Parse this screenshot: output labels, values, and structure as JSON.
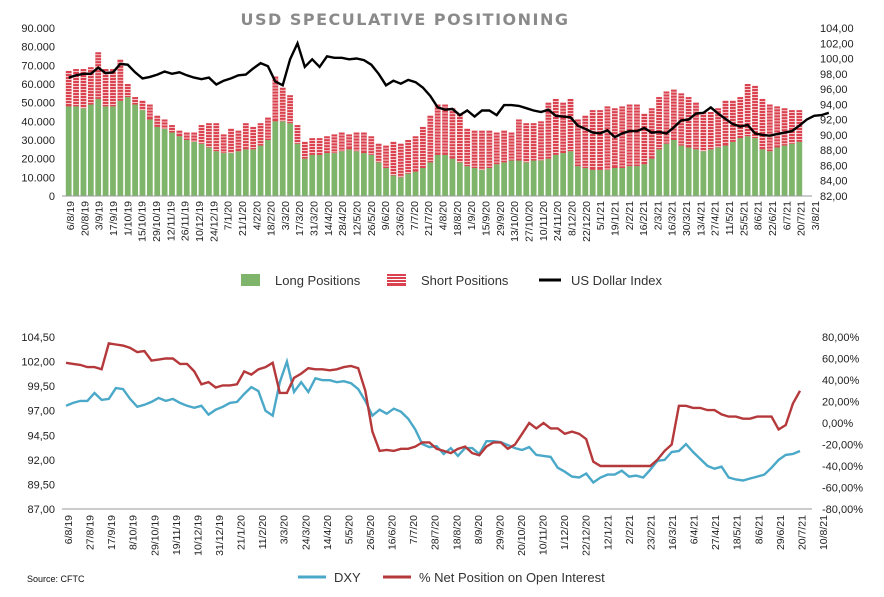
{
  "chart_data": [
    {
      "type": "bar",
      "title": "USD SPECULATIVE POSITIONING",
      "stacked": true,
      "y_left": {
        "ticks": [
          "0",
          "10.000",
          "20.000",
          "30.000",
          "40.000",
          "50.000",
          "60.000",
          "70.000",
          "80.000",
          "90.000"
        ],
        "range": [
          0,
          90000
        ]
      },
      "y_right": {
        "ticks": [
          "82,00",
          "84,00",
          "86,00",
          "88,00",
          "90,00",
          "92,00",
          "94,00",
          "96,00",
          "98,00",
          "100,00",
          "102,00",
          "104,00"
        ],
        "range": [
          82,
          104
        ]
      },
      "x_tick_labels": [
        "6/8/19",
        "20/8/19",
        "3/9/19",
        "17/9/19",
        "1/10/19",
        "15/10/19",
        "29/10/19",
        "12/11/19",
        "26/11/19",
        "10/12/19",
        "24/12/19",
        "7/1/20",
        "21/1/20",
        "4/2/20",
        "18/2/20",
        "3/3/20",
        "17/3/20",
        "31/3/20",
        "14/4/20",
        "28/4/20",
        "12/5/20",
        "26/5/20",
        "9/6/20",
        "23/6/20",
        "7/7/20",
        "21/7/20",
        "4/8/20",
        "18/8/20",
        "1/9/20",
        "15/9/20",
        "29/9/20",
        "13/10/20",
        "27/10/20",
        "10/11/20",
        "24/11/20",
        "8/12/20",
        "22/12/20",
        "5/1/21",
        "19/1/21",
        "2/2/21",
        "16/2/21",
        "2/3/21",
        "16/3/21",
        "30/3/21",
        "13/4/21",
        "27/4/21",
        "11/5/21",
        "25/5/21",
        "8/6/21",
        "22/6/21",
        "6/7/21",
        "20/7/21",
        "3/8/21"
      ],
      "legend_position": "bottom",
      "series": [
        {
          "name": "Long Positions",
          "color": "#7fb56a",
          "values": [
            48000,
            48000,
            47000,
            49000,
            52000,
            48000,
            48000,
            51000,
            53000,
            49000,
            46000,
            41000,
            37000,
            36000,
            34000,
            32000,
            30000,
            29000,
            28000,
            26000,
            24000,
            23000,
            23000,
            24000,
            25000,
            25000,
            27000,
            30000,
            40000,
            40000,
            39000,
            28000,
            20000,
            22000,
            22000,
            23000,
            23000,
            24000,
            25000,
            24000,
            23000,
            22000,
            18000,
            15000,
            11000,
            10000,
            12000,
            13000,
            15000,
            18000,
            22000,
            22000,
            20000,
            18000,
            16000,
            15000,
            14000,
            15000,
            17000,
            18000,
            19000,
            19000,
            18000,
            19000,
            19000,
            20000,
            22000,
            23000,
            24000,
            16000,
            15000,
            14000,
            14000,
            14000,
            15000,
            15000,
            16000,
            16000,
            17000,
            20000,
            25000,
            28000,
            30000,
            27000,
            26000,
            25000,
            24000,
            25000,
            26000,
            27000,
            29000,
            31000,
            32000,
            31000,
            25000,
            24000,
            26000,
            27000,
            28000,
            29000
          ]
        },
        {
          "name": "Short Positions",
          "color": "#d9424e",
          "values": [
            19000,
            20000,
            21000,
            20000,
            25000,
            20000,
            20000,
            22000,
            7000,
            4000,
            5000,
            8000,
            6000,
            5000,
            4000,
            3000,
            4000,
            5000,
            10000,
            13000,
            15000,
            10000,
            13000,
            11000,
            14000,
            12000,
            12000,
            12000,
            24000,
            18000,
            15000,
            10000,
            9000,
            9000,
            9000,
            9000,
            10000,
            10000,
            8000,
            10000,
            11000,
            10000,
            10000,
            12000,
            18000,
            18000,
            18000,
            19000,
            22000,
            25000,
            27000,
            27000,
            27000,
            26000,
            20000,
            20000,
            21000,
            20000,
            17000,
            17000,
            15000,
            22000,
            21000,
            20000,
            21000,
            30000,
            30000,
            27000,
            28000,
            25000,
            28000,
            32000,
            32000,
            34000,
            32000,
            33000,
            33000,
            33000,
            27000,
            27000,
            28000,
            28000,
            27000,
            28000,
            27000,
            25000,
            21000,
            20000,
            21000,
            24000,
            22000,
            22000,
            28000,
            28000,
            27000,
            25000,
            22000,
            20000,
            18000,
            17000
          ]
        },
        {
          "name": "US Dollar Index",
          "color": "#000000",
          "axis": "right",
          "values": [
            97.5,
            97.8,
            98.0,
            98.0,
            98.8,
            98.1,
            98.2,
            99.3,
            99.2,
            98.2,
            97.4,
            97.6,
            97.9,
            98.3,
            98.0,
            98.2,
            97.8,
            97.5,
            97.3,
            97.5,
            96.6,
            97.1,
            97.4,
            97.8,
            97.9,
            98.7,
            99.4,
            99.0,
            97.0,
            96.5,
            99.9,
            102.0,
            98.9,
            99.9,
            98.9,
            100.3,
            100.1,
            100.1,
            99.9,
            100.0,
            99.8,
            99.2,
            98.0,
            96.5,
            97.1,
            96.7,
            97.2,
            96.9,
            96.2,
            95.1,
            93.6,
            93.3,
            93.4,
            92.6,
            93.2,
            92.4,
            93.2,
            93.2,
            92.6,
            93.9,
            93.9,
            93.8,
            93.5,
            93.2,
            93.0,
            93.3,
            92.5,
            92.4,
            92.3,
            91.2,
            90.8,
            90.3,
            90.2,
            90.6,
            89.7,
            90.2,
            90.5,
            90.5,
            90.9,
            90.3,
            90.4,
            90.2,
            91.0,
            91.9,
            92.0,
            92.8,
            92.9,
            93.6,
            92.8,
            92.1,
            91.4,
            91.1,
            91.3,
            90.2,
            90.0,
            89.9,
            90.1,
            90.3,
            90.5,
            91.2,
            92.0,
            92.5,
            92.6,
            92.9
          ]
        }
      ]
    },
    {
      "type": "line",
      "source": "Source: CFTC",
      "y_left": {
        "ticks": [
          "87,00",
          "89,50",
          "92,00",
          "94,50",
          "97,00",
          "99,50",
          "102,00",
          "104,50"
        ],
        "range": [
          87,
          104.5
        ]
      },
      "y_right": {
        "ticks": [
          "-80,00%",
          "-60,00%",
          "-40,00%",
          "-20,00%",
          "0,00%",
          "20,00%",
          "40,00%",
          "60,00%",
          "80,00%"
        ],
        "range": [
          -80,
          80
        ]
      },
      "x_tick_labels": [
        "6/8/19",
        "27/8/19",
        "17/9/19",
        "8/10/19",
        "29/10/19",
        "19/11/19",
        "10/12/19",
        "31/12/19",
        "21/1/20",
        "11/2/20",
        "3/3/20",
        "24/3/20",
        "14/4/20",
        "5/5/20",
        "26/5/20",
        "16/6/20",
        "7/7/20",
        "28/7/20",
        "18/8/20",
        "8/9/20",
        "29/9/20",
        "20/10/20",
        "10/11/20",
        "1/12/20",
        "22/12/20",
        "12/1/21",
        "2/2/21",
        "23/2/21",
        "16/3/21",
        "6/4/21",
        "27/4/21",
        "18/5/21",
        "8/6/21",
        "29/6/21",
        "20/7/21",
        "10/8/21"
      ],
      "legend_position": "bottom",
      "series": [
        {
          "name": "DXY",
          "color": "#4aa8c8",
          "values": [
            97.5,
            97.8,
            98.0,
            98.0,
            98.8,
            98.1,
            98.2,
            99.3,
            99.2,
            98.2,
            97.4,
            97.6,
            97.9,
            98.3,
            98.0,
            98.2,
            97.8,
            97.5,
            97.3,
            97.5,
            96.6,
            97.1,
            97.4,
            97.8,
            97.9,
            98.7,
            99.4,
            99.0,
            97.0,
            96.5,
            99.9,
            102.0,
            98.9,
            99.9,
            98.9,
            100.3,
            100.1,
            100.1,
            99.9,
            100.0,
            99.8,
            99.2,
            98.0,
            96.5,
            97.1,
            96.7,
            97.2,
            96.9,
            96.2,
            95.1,
            93.6,
            93.3,
            93.4,
            92.6,
            93.2,
            92.4,
            93.2,
            93.2,
            92.6,
            93.9,
            93.9,
            93.8,
            93.5,
            93.2,
            93.0,
            93.3,
            92.5,
            92.4,
            92.3,
            91.2,
            90.8,
            90.3,
            90.2,
            90.6,
            89.7,
            90.2,
            90.5,
            90.5,
            90.9,
            90.3,
            90.4,
            90.2,
            91.0,
            91.9,
            92.0,
            92.8,
            92.9,
            93.6,
            92.8,
            92.1,
            91.4,
            91.1,
            91.3,
            90.2,
            90.0,
            89.9,
            90.1,
            90.3,
            90.5,
            91.2,
            92.0,
            92.5,
            92.6,
            92.9
          ]
        },
        {
          "name": "% Net Position on Open Interest",
          "color": "#b5383b",
          "values": [
            56,
            55,
            54,
            52,
            52,
            50,
            74,
            73,
            72,
            70,
            66,
            67,
            58,
            59,
            60,
            60,
            55,
            55,
            48,
            36,
            38,
            33,
            35,
            35,
            36,
            48,
            45,
            50,
            52,
            56,
            28,
            28,
            42,
            46,
            51,
            50,
            50,
            49,
            50,
            52,
            53,
            51,
            30,
            -8,
            -26,
            -25,
            -26,
            -24,
            -24,
            -22,
            -18,
            -18,
            -24,
            -26,
            -28,
            -24,
            -22,
            -28,
            -30,
            -22,
            -18,
            -18,
            -24,
            -20,
            -10,
            0,
            -5,
            0,
            -5,
            -5,
            -10,
            -8,
            -10,
            -15,
            -36,
            -40,
            -40,
            -40,
            -40,
            -40,
            -40,
            -40,
            -40,
            -34,
            -26,
            -20,
            16,
            16,
            14,
            14,
            12,
            12,
            8,
            6,
            6,
            4,
            4,
            6,
            6,
            6,
            -6,
            -2,
            18,
            30
          ]
        }
      ]
    }
  ]
}
